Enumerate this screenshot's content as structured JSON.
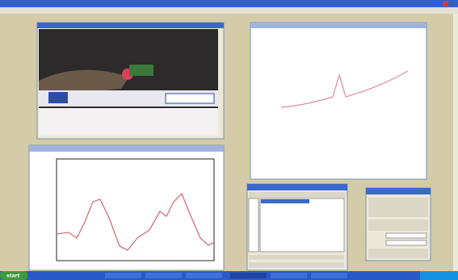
{
  "taskbar": {
    "start": "start"
  }
}
